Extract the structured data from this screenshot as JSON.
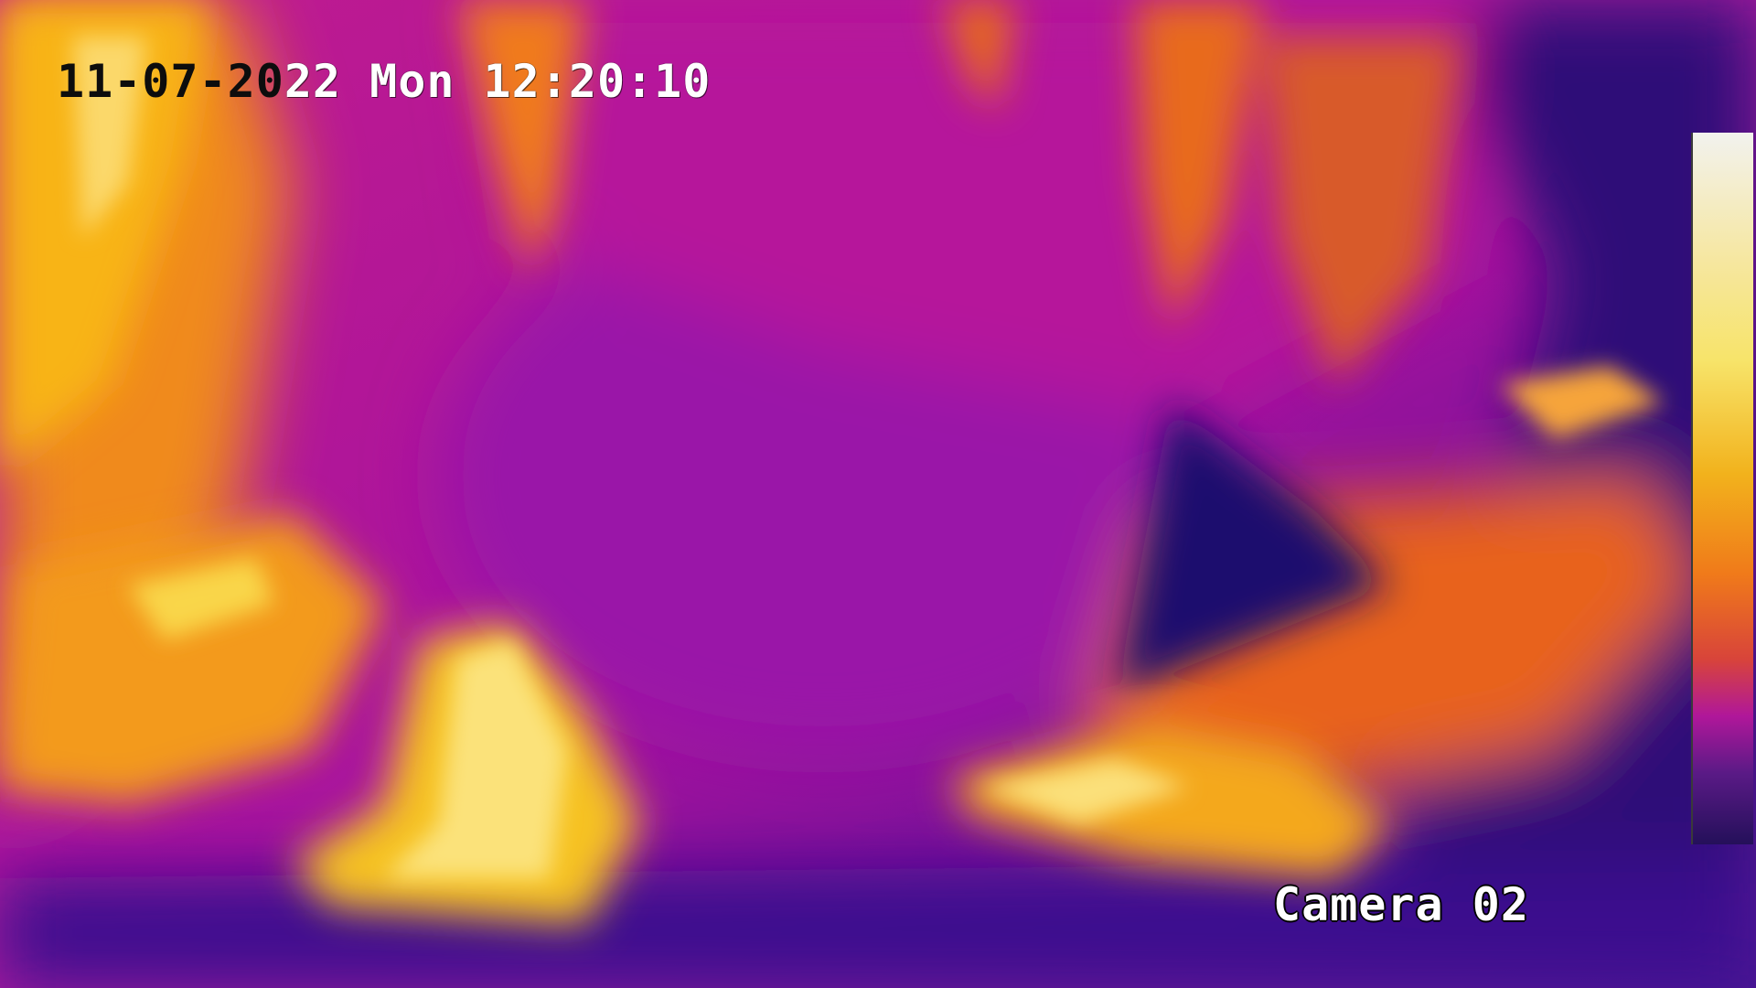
{
  "osd": {
    "timestamp_part_dark": "11-07-20",
    "timestamp_part_light": "22 Mon 12:20:10",
    "camera_label": "Camera 02"
  },
  "colors": {
    "background_cold": "#2a0a6e",
    "mid_magenta": "#b0179a",
    "warm_orange": "#f07a1a",
    "hot_yellow": "#f7e46a",
    "palette_top": "#f2f2ee",
    "palette_bottom": "#24105a"
  },
  "palette": {
    "orientation": "vertical",
    "top_meaning": "hot",
    "bottom_meaning": "cold"
  }
}
